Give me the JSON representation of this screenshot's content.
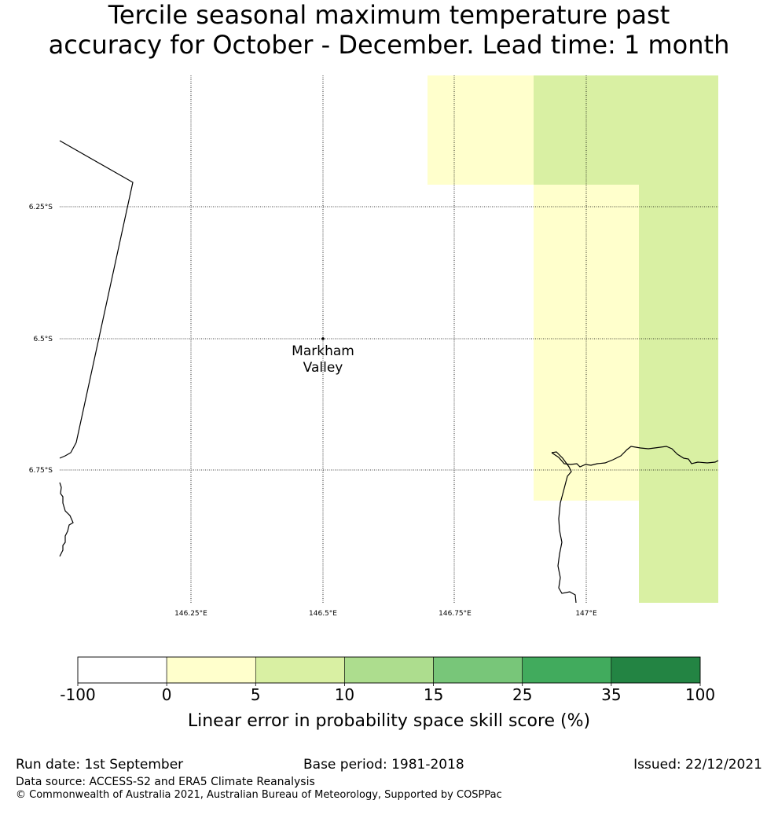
{
  "title": {
    "line1": "Tercile seasonal maximum temperature past",
    "line2": "accuracy for October - December. Lead time: 1 month"
  },
  "map": {
    "lat_labels": [
      "6.25°S",
      "6.5°S",
      "6.75°S"
    ],
    "lon_labels": [
      "146.25°E",
      "146.5°E",
      "146.75°E",
      "147°E"
    ],
    "place": {
      "name_line1": "Markham",
      "name_line2": "Valley"
    }
  },
  "colorbar": {
    "ticks": [
      "-100",
      "0",
      "5",
      "10",
      "15",
      "25",
      "35",
      "100"
    ],
    "colors": [
      "#ffffff",
      "#ffffcc",
      "#d9f0a3",
      "#addd8e",
      "#78c679",
      "#41ab5d",
      "#238443"
    ],
    "label": "Linear error in probability space skill score (%)"
  },
  "footer": {
    "run_date": "Run date: 1st September",
    "base_period": "Base period: 1981-2018",
    "issued": "Issued: 22/12/2021",
    "data_source": "Data source: ACCESS-S2 and ERA5 Climate Reanalysis",
    "copyright": "© Commonwealth of Australia 2021, Australian Bureau of Meteorology, Supported by COSPPac"
  }
}
